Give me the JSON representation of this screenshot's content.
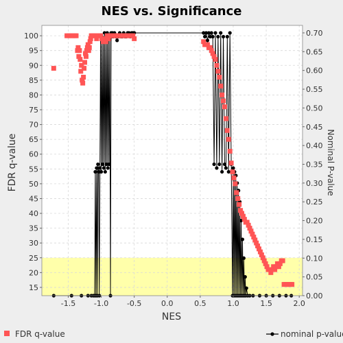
{
  "chart_data": {
    "type": "scatter",
    "title": "NES vs. Significance",
    "xlabel": "NES",
    "ylabel_left": "FDR q-value",
    "ylabel_right": "Nominal P-value",
    "xlim": [
      -1.9,
      2.05
    ],
    "ylim_left": [
      12.2,
      103.5
    ],
    "ylim_right": [
      0,
      0.72
    ],
    "x_ticks": [
      -1.5,
      -1.0,
      -0.5,
      0.0,
      0.5,
      1.0,
      1.5,
      2.0
    ],
    "x_tick_labels": [
      "-1.5",
      "-1.0",
      "-0.5",
      "0.0",
      "0.5",
      "1.0",
      "1.5",
      "2.0"
    ],
    "y_left_ticks": [
      15,
      20,
      25,
      30,
      35,
      40,
      45,
      50,
      55,
      60,
      65,
      70,
      75,
      80,
      85,
      90,
      95,
      100
    ],
    "y_left_tick_labels": [
      "15",
      "20",
      "25",
      "30",
      "35",
      "40",
      "45",
      "50",
      "55",
      "60",
      "65",
      "70",
      "75",
      "80",
      "85",
      "90",
      "95",
      "100"
    ],
    "y_right_ticks": [
      0.0,
      0.05,
      0.1,
      0.15,
      0.2,
      0.25,
      0.3,
      0.35,
      0.4,
      0.45,
      0.5,
      0.55,
      0.6,
      0.65,
      0.7
    ],
    "y_right_tick_labels": [
      "0.00",
      "0.05",
      "0.10",
      "0.15",
      "0.20",
      "0.25",
      "0.30",
      "0.35",
      "0.40",
      "0.45",
      "0.50",
      "0.55",
      "0.60",
      "0.65",
      "0.70"
    ],
    "grid": true,
    "highlight_band": {
      "axis": "left",
      "from": 12.2,
      "to": 25,
      "color": "#ffffaa"
    },
    "legend_position": "bottom",
    "series": [
      {
        "name": "FDR q-value",
        "axis": "left",
        "marker": "square",
        "color": "#ff5555",
        "x": [
          -1.72,
          -1.52,
          -1.49,
          -1.46,
          -1.43,
          -1.4,
          -1.38,
          -1.36,
          -1.35,
          -1.34,
          -1.33,
          -1.32,
          -1.31,
          -1.3,
          -1.29,
          -1.28,
          -1.27,
          -1.26,
          -1.25,
          -1.24,
          -1.23,
          -1.22,
          -1.21,
          -1.2,
          -1.19,
          -1.18,
          -1.17,
          -1.16,
          -1.15,
          -1.13,
          -1.11,
          -1.09,
          -1.07,
          -1.05,
          -1.03,
          -1.01,
          -0.99,
          -0.97,
          -0.95,
          -0.93,
          -0.91,
          -0.89,
          -0.87,
          -0.85,
          -0.82,
          -0.79,
          -0.76,
          -0.73,
          -0.7,
          -0.67,
          -0.64,
          -0.61,
          -0.58,
          -0.55,
          -0.52,
          -0.5,
          0.55,
          0.57,
          0.59,
          0.61,
          0.63,
          0.65,
          0.67,
          0.69,
          0.71,
          0.73,
          0.75,
          0.77,
          0.79,
          0.81,
          0.83,
          0.85,
          0.87,
          0.89,
          0.91,
          0.93,
          0.95,
          0.97,
          0.99,
          1.01,
          1.03,
          1.05,
          1.07,
          1.09,
          1.11,
          1.13,
          1.15,
          1.17,
          1.19,
          1.21,
          1.23,
          1.25,
          1.27,
          1.29,
          1.31,
          1.33,
          1.35,
          1.37,
          1.39,
          1.41,
          1.43,
          1.45,
          1.47,
          1.49,
          1.51,
          1.53,
          1.55,
          1.57,
          1.59,
          1.61,
          1.63,
          1.65,
          1.67,
          1.69,
          1.71,
          1.73,
          1.75,
          1.77,
          1.79,
          1.81,
          1.83,
          1.85,
          1.87,
          1.89
        ],
        "y": [
          89,
          100,
          100,
          100,
          100,
          100,
          100,
          95,
          96,
          93,
          95,
          92,
          88,
          90,
          85,
          84,
          86,
          89,
          91,
          94,
          93,
          95,
          96,
          97,
          95,
          96,
          98,
          99,
          100,
          100,
          100,
          100,
          99,
          100,
          100,
          100,
          99,
          98,
          99,
          98,
          100,
          99,
          100,
          100,
          100,
          100,
          100,
          100,
          100,
          100,
          100,
          100,
          100,
          100,
          100,
          99,
          98,
          97,
          97,
          97,
          96,
          96,
          95,
          94,
          93,
          92,
          90,
          88,
          86,
          83,
          80,
          78,
          76,
          72,
          68,
          65,
          61,
          57,
          54,
          52,
          50,
          47,
          45,
          43,
          41,
          40,
          39,
          38,
          37,
          37,
          36,
          35,
          34,
          33,
          32,
          31,
          30,
          29,
          28,
          27,
          26,
          25,
          24,
          23,
          22,
          21,
          21,
          20,
          21,
          22,
          21,
          22,
          23,
          22,
          23,
          24,
          24,
          16,
          16,
          16,
          16,
          16,
          16,
          16
        ]
      },
      {
        "name": "nominal p-value",
        "axis": "right",
        "marker": "circle",
        "color": "#000000",
        "x": [
          -1.72,
          -1.45,
          -1.3,
          -1.2,
          -1.15,
          -1.12,
          -1.1,
          -1.09,
          -1.08,
          -1.07,
          -1.06,
          -1.05,
          -1.04,
          -1.03,
          -1.02,
          -1.01,
          -1.0,
          -0.99,
          -0.98,
          -0.97,
          -0.96,
          -0.95,
          -0.94,
          -0.93,
          -0.92,
          -0.91,
          -0.9,
          -0.89,
          -0.88,
          -0.87,
          -0.86,
          -0.85,
          -0.84,
          -0.83,
          -0.82,
          -0.8,
          -0.78,
          -0.76,
          -0.74,
          -0.72,
          -0.7,
          -0.68,
          -0.66,
          -0.64,
          -0.62,
          -0.6,
          -0.58,
          -0.56,
          -0.54,
          -0.52,
          -0.5,
          0.55,
          0.57,
          0.59,
          0.61,
          0.63,
          0.65,
          0.67,
          0.69,
          0.71,
          0.73,
          0.75,
          0.77,
          0.79,
          0.81,
          0.83,
          0.85,
          0.87,
          0.89,
          0.91,
          0.93,
          0.95,
          0.97,
          0.99,
          1.0,
          1.01,
          1.02,
          1.03,
          1.04,
          1.05,
          1.06,
          1.07,
          1.08,
          1.09,
          1.1,
          1.11,
          1.12,
          1.13,
          1.14,
          1.15,
          1.16,
          1.17,
          1.18,
          1.19,
          1.2,
          1.22,
          1.25,
          1.3,
          1.4,
          1.5,
          1.6,
          1.7,
          1.8,
          1.88
        ],
        "y": [
          0.0,
          0.0,
          0.0,
          0.0,
          0.0,
          0.0,
          0.0,
          0.33,
          0.0,
          0.34,
          0.0,
          0.35,
          0.33,
          0.0,
          0.34,
          0.69,
          0.33,
          0.69,
          0.35,
          0.68,
          0.34,
          0.7,
          0.33,
          0.69,
          0.35,
          0.7,
          0.34,
          0.69,
          0.35,
          0.69,
          0.0,
          0.7,
          0.69,
          0.7,
          0.69,
          0.7,
          0.69,
          0.68,
          0.69,
          0.7,
          0.69,
          0.69,
          0.7,
          0.69,
          0.69,
          0.7,
          0.7,
          0.69,
          0.7,
          0.7,
          0.7,
          0.7,
          0.69,
          0.7,
          0.68,
          0.7,
          0.69,
          0.7,
          0.69,
          0.35,
          0.7,
          0.34,
          0.69,
          0.35,
          0.7,
          0.33,
          0.69,
          0.35,
          0.34,
          0.69,
          0.33,
          0.7,
          0.35,
          0.0,
          0.34,
          0.0,
          0.33,
          0.0,
          0.32,
          0.0,
          0.3,
          0.0,
          0.28,
          0.0,
          0.25,
          0.0,
          0.2,
          0.0,
          0.15,
          0.0,
          0.1,
          0.0,
          0.05,
          0.0,
          0.02,
          0.0,
          0.0,
          0.0,
          0.0,
          0.0,
          0.0,
          0.0,
          0.0,
          0.0
        ]
      }
    ]
  }
}
